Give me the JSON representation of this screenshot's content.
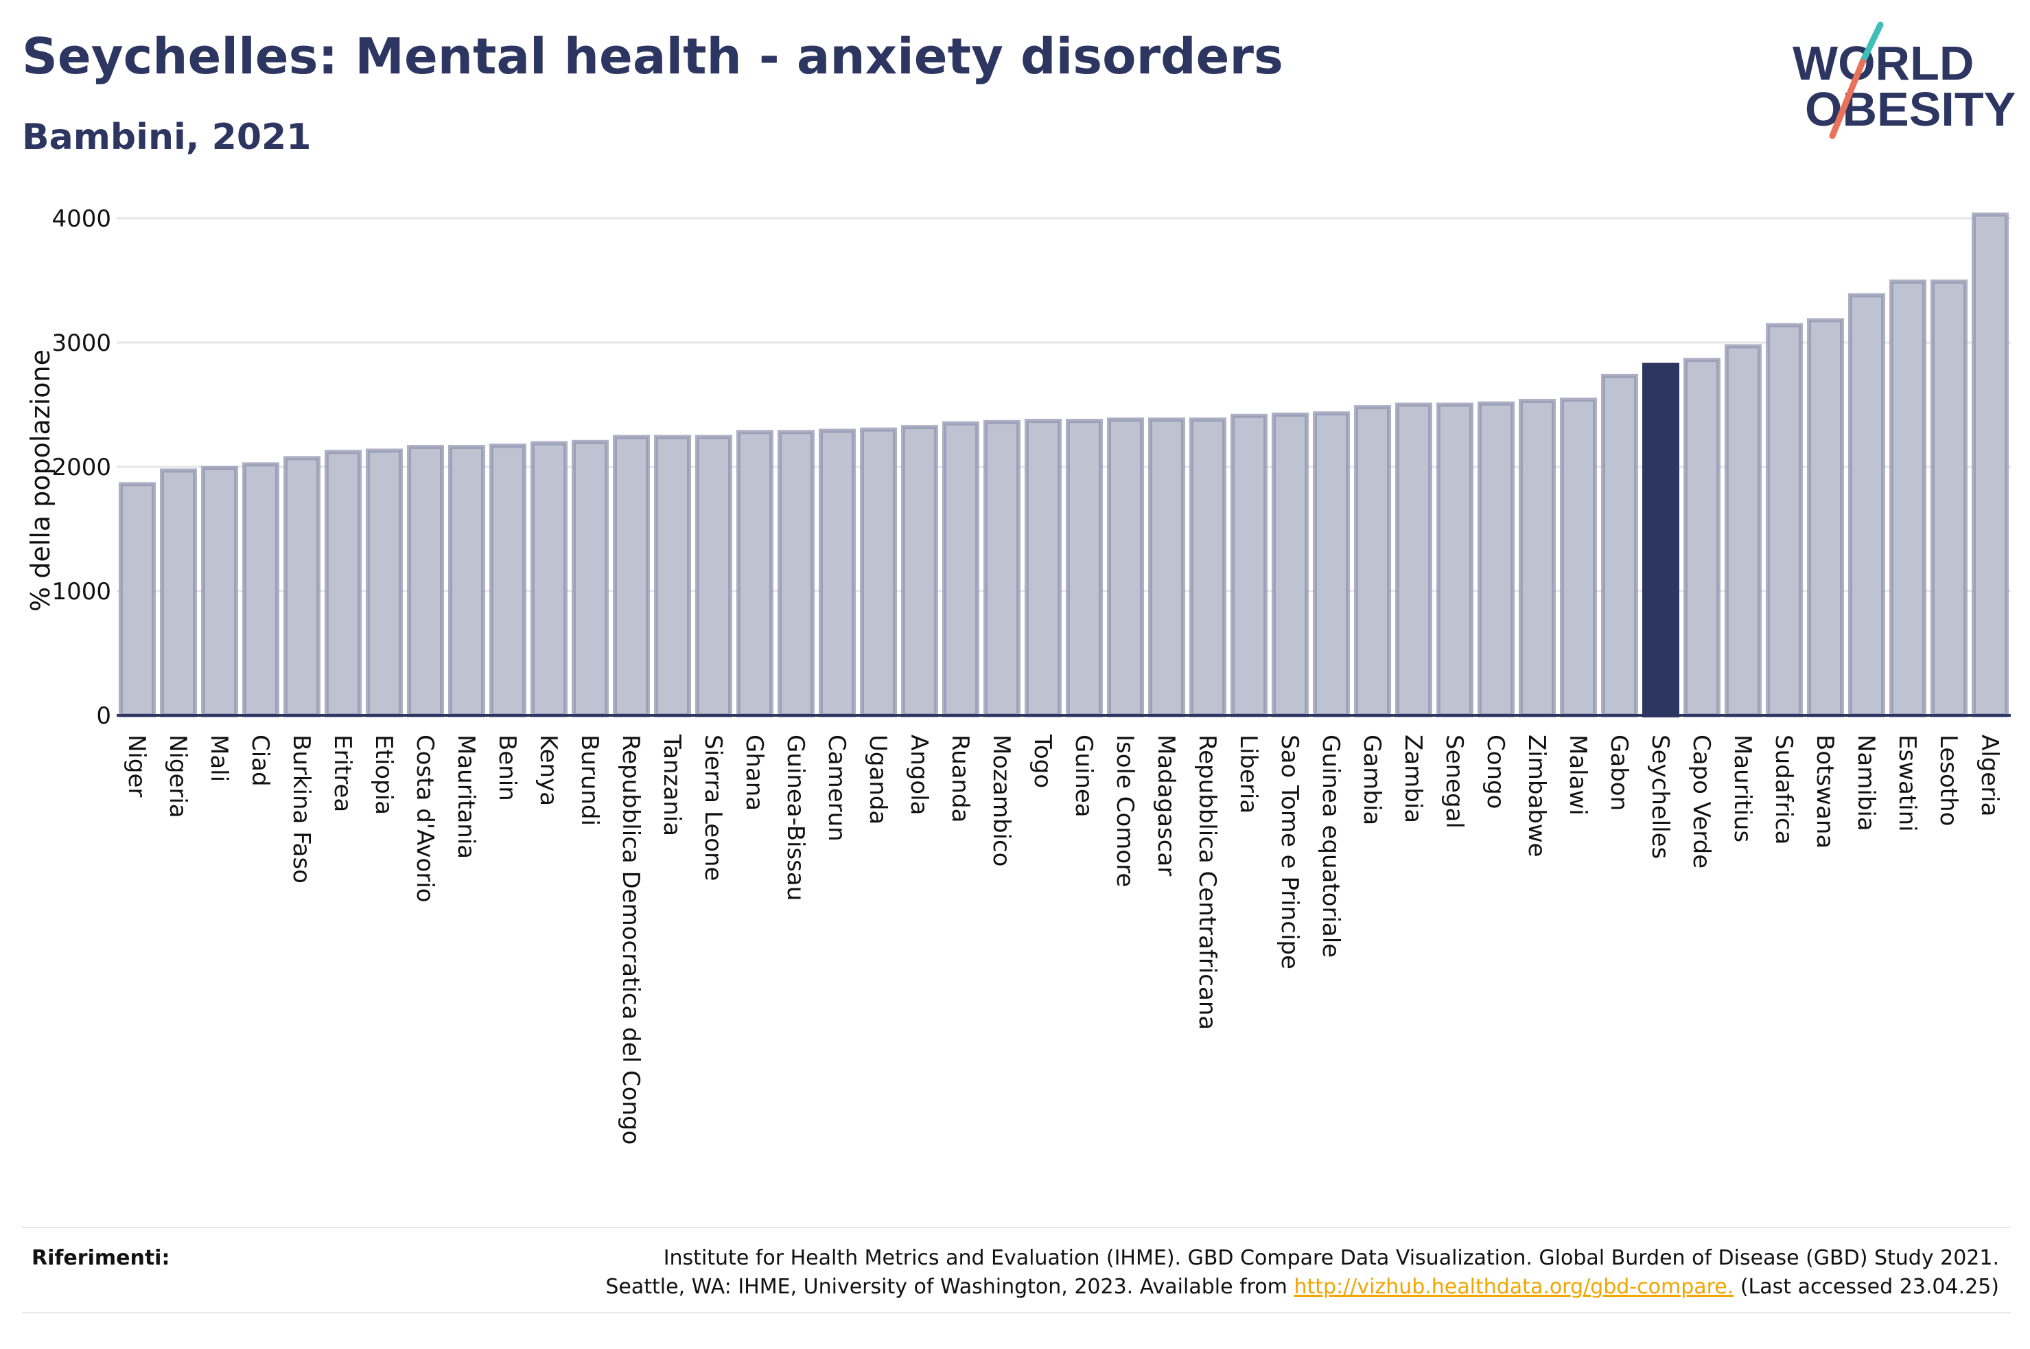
{
  "header": {
    "title": "Seychelles: Mental health - anxiety disorders",
    "subtitle": "Bambini, 2021"
  },
  "logo": {
    "line1": "WORLD",
    "line2": "OBESITY",
    "colors": {
      "text": "#2d3561",
      "slash_teal": "#3fbfb5",
      "slash_red": "#e8735a"
    }
  },
  "colors": {
    "bar_fill": "#bfc2d0",
    "bar_stroke": "#9196b0",
    "highlight": "#2d3561",
    "axis": "#2d3561",
    "grid": "#e6e6ea",
    "link": "#f2a500"
  },
  "chart_data": {
    "type": "bar",
    "ylabel": "% della popolazione",
    "ylim": [
      0,
      4000
    ],
    "yticks": [
      0,
      1000,
      2000,
      3000,
      4000
    ],
    "grid": true,
    "highlight": "Seychelles",
    "categories": [
      "Niger",
      "Nigeria",
      "Mali",
      "Ciad",
      "Burkina Faso",
      "Eritrea",
      "Etiopia",
      "Costa d'Avorio",
      "Mauritania",
      "Benin",
      "Kenya",
      "Burundi",
      "Repubblica Democratica del Congo",
      "Tanzania",
      "Sierra Leone",
      "Ghana",
      "Guinea-Bissau",
      "Camerun",
      "Uganda",
      "Angola",
      "Ruanda",
      "Mozambico",
      "Togo",
      "Guinea",
      "Isole Comore",
      "Madagascar",
      "Repubblica Centrafricana",
      "Liberia",
      "Sao Tome e Principe",
      "Guinea equatoriale",
      "Gambia",
      "Zambia",
      "Senegal",
      "Congo",
      "Zimbabwe",
      "Malawi",
      "Gabon",
      "Seychelles",
      "Capo Verde",
      "Mauritius",
      "Sudafrica",
      "Botswana",
      "Namibia",
      "Eswatini",
      "Lesotho",
      "Algeria"
    ],
    "values": [
      1860,
      1970,
      1990,
      2020,
      2070,
      2120,
      2130,
      2160,
      2160,
      2170,
      2190,
      2200,
      2240,
      2240,
      2240,
      2280,
      2280,
      2290,
      2300,
      2320,
      2350,
      2360,
      2370,
      2370,
      2380,
      2380,
      2380,
      2410,
      2420,
      2430,
      2480,
      2500,
      2500,
      2510,
      2530,
      2540,
      2730,
      2820,
      2860,
      2970,
      3140,
      3180,
      3380,
      3490,
      3490,
      4030
    ]
  },
  "references": {
    "label": "Riferimenti:",
    "line1": "Institute for Health Metrics and Evaluation (IHME). GBD Compare Data Visualization. Global Burden of Disease (GBD) Study 2021.",
    "line2_prefix": "Seattle, WA: IHME, University of Washington, 2023. Available from ",
    "link": "http://vizhub.healthdata.org/gbd-compare.",
    "line2_suffix": " (Last accessed 23.04.25)"
  }
}
